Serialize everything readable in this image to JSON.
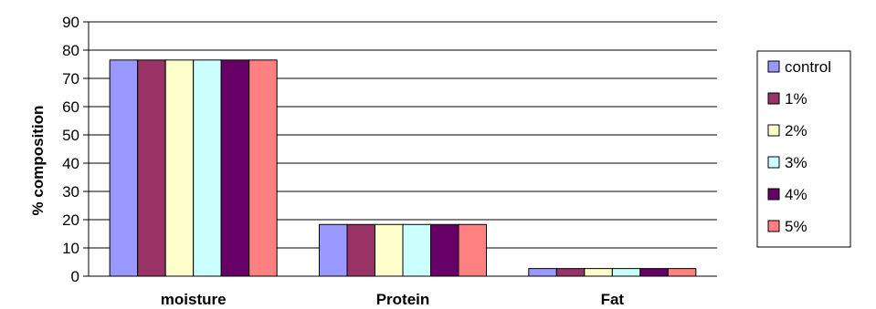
{
  "chart_data": {
    "type": "bar",
    "title": "",
    "xlabel": "",
    "ylabel": "% composition",
    "ylim": [
      0,
      90
    ],
    "yticks": [
      0,
      10,
      20,
      30,
      40,
      50,
      60,
      70,
      80,
      90
    ],
    "grid": "horizontal",
    "legend_position": "right",
    "categories": [
      "moisture",
      "Protein",
      "Fat"
    ],
    "series": [
      {
        "name": "control",
        "color": "#9999FF",
        "values": [
          76.5,
          18.3,
          2.7
        ]
      },
      {
        "name": "1%",
        "color": "#993366",
        "values": [
          76.5,
          18.3,
          2.7
        ]
      },
      {
        "name": "2%",
        "color": "#FFFFCC",
        "values": [
          76.5,
          18.3,
          2.7
        ]
      },
      {
        "name": "3%",
        "color": "#CCFFFF",
        "values": [
          76.5,
          18.3,
          2.7
        ]
      },
      {
        "name": "4%",
        "color": "#660066",
        "values": [
          76.5,
          18.3,
          2.7
        ]
      },
      {
        "name": "5%",
        "color": "#FF8080",
        "values": [
          76.5,
          18.3,
          2.7
        ]
      }
    ]
  }
}
